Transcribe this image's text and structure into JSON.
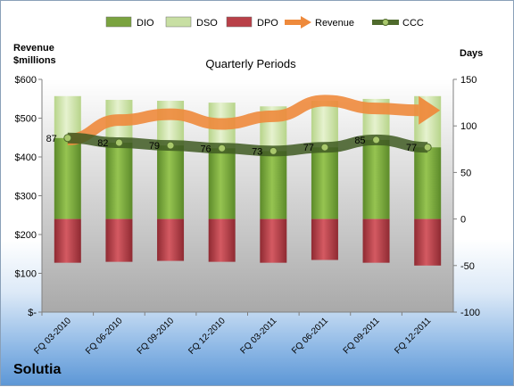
{
  "company": "Solutia",
  "chart_data": {
    "type": "bar",
    "title": "Quarterly Periods",
    "left_axis_title": [
      "Revenue",
      "$millions"
    ],
    "right_axis_title": "Days",
    "left_ticks": [
      "$-",
      "$100",
      "$200",
      "$300",
      "$400",
      "$500",
      "$600"
    ],
    "right_ticks": [
      "-100",
      "-50",
      "0",
      "50",
      "100",
      "150"
    ],
    "left_ylim": [
      0,
      600
    ],
    "right_ylim": [
      -100,
      150
    ],
    "grid": false,
    "legend_position": "top",
    "legend": [
      {
        "name": "DIO",
        "kind": "bar",
        "color": "#7aa33f"
      },
      {
        "name": "DSO",
        "kind": "bar",
        "color": "#c8dfa3"
      },
      {
        "name": "DPO",
        "kind": "bar",
        "color": "#b94048"
      },
      {
        "name": "Revenue",
        "kind": "arrow",
        "color": "#ee8a3c"
      },
      {
        "name": "CCC",
        "kind": "line",
        "color": "#4f6a2c"
      }
    ],
    "categories": [
      "FQ 03-2010",
      "FQ 06-2010",
      "FQ 09-2010",
      "FQ 12-2010",
      "FQ 03-2011",
      "FQ 06-2011",
      "FQ 09-2011",
      "FQ 12-2011"
    ],
    "series": [
      {
        "name": "DIO",
        "axis": "right",
        "values": [
          87,
          82,
          79,
          76,
          73,
          77,
          85,
          77
        ]
      },
      {
        "name": "DSO",
        "axis": "right",
        "values": [
          45,
          46,
          48,
          49,
          48,
          50,
          44,
          55
        ]
      },
      {
        "name": "DPO",
        "axis": "right",
        "values": [
          -47,
          -46,
          -45,
          -46,
          -47,
          -44,
          -47,
          -50
        ]
      },
      {
        "name": "Revenue",
        "axis": "left",
        "values": [
          445,
          495,
          510,
          485,
          505,
          545,
          525,
          520
        ]
      },
      {
        "name": "CCC",
        "axis": "right",
        "values": [
          87,
          82,
          79,
          76,
          73,
          77,
          85,
          77
        ]
      }
    ],
    "ccc_labels": [
      "87",
      "82",
      "79",
      "76",
      "73",
      "77",
      "85",
      "77"
    ]
  }
}
